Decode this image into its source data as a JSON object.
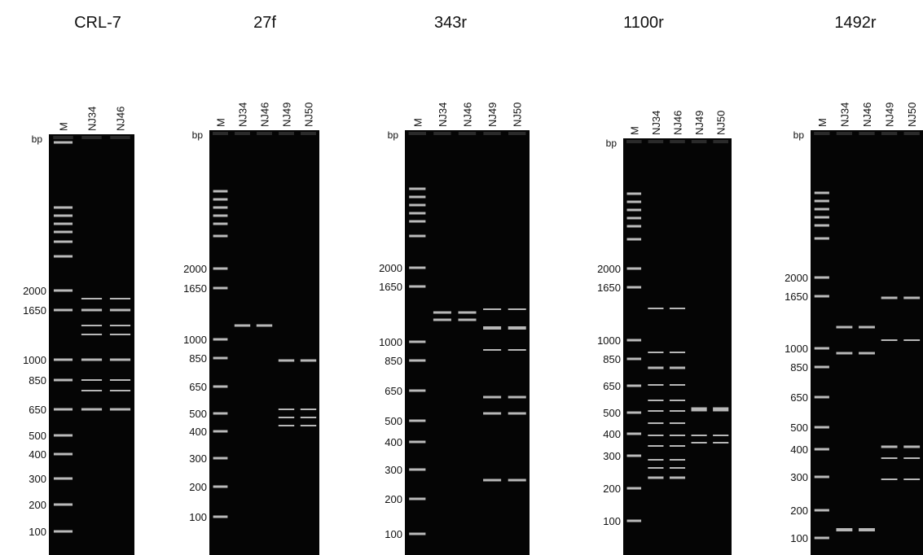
{
  "panels": [
    {
      "title": "CRL-7",
      "lanes": [
        "M",
        "NJ34",
        "NJ46"
      ],
      "bp_label": "bp",
      "markers": [
        "2000",
        "1650",
        "1000",
        "850",
        "650",
        "500",
        "400",
        "300",
        "200",
        "100"
      ]
    },
    {
      "title": "27f",
      "lanes": [
        "M",
        "NJ34",
        "NJ46",
        "NJ49",
        "NJ50"
      ],
      "bp_label": "bp",
      "markers": [
        "2000",
        "1650",
        "1000",
        "850",
        "650",
        "500",
        "400",
        "300",
        "200",
        "100"
      ]
    },
    {
      "title": "343r",
      "lanes": [
        "M",
        "NJ34",
        "NJ46",
        "NJ49",
        "NJ50"
      ],
      "bp_label": "bp",
      "markers": [
        "2000",
        "1650",
        "1000",
        "850",
        "650",
        "500",
        "400",
        "300",
        "200",
        "100"
      ]
    },
    {
      "title": "1100r",
      "lanes": [
        "M",
        "NJ34",
        "NJ46",
        "NJ49",
        "NJ50"
      ],
      "bp_label": "bp",
      "markers": [
        "2000",
        "1650",
        "1000",
        "850",
        "650",
        "500",
        "400",
        "300",
        "200",
        "100"
      ]
    },
    {
      "title": "1492r",
      "lanes": [
        "M",
        "NJ34",
        "NJ46",
        "NJ49",
        "NJ50"
      ],
      "bp_label": "bp",
      "markers": [
        "2000",
        "1650",
        "1000",
        "850",
        "650",
        "500",
        "400",
        "300",
        "200",
        "100"
      ]
    }
  ]
}
